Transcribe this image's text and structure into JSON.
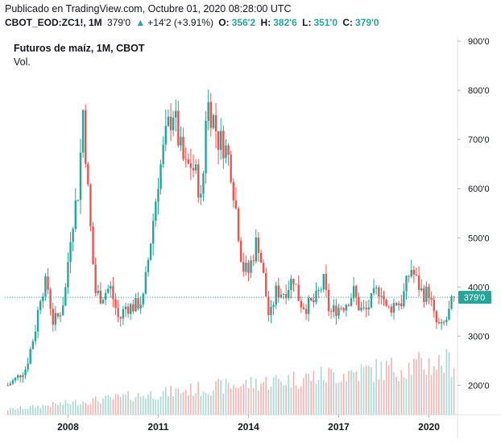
{
  "header": {
    "published": "Publicado en TradingView.com, Octubre 01, 2020 08:28:00 UTC",
    "symbol": "CBOT_EOD:ZC1!, 1M",
    "last": "379'0",
    "change_icon": "triangle-up-icon",
    "change": "+14'2 (+3.91%)",
    "open_label": "O:",
    "open": "356'2",
    "high_label": "H:",
    "high": "382'6",
    "low_label": "L:",
    "low": "351'0",
    "close_label": "C:",
    "close": "379'0"
  },
  "legend": {
    "title": "Futuros de maíz, 1M, CBOT",
    "volume": "Vol."
  },
  "colors": {
    "up": "#26a69a",
    "down": "#ef5350",
    "vol_up": "#a8d9d4",
    "vol_down": "#f4b3b1",
    "last_price_line": "#26a69a",
    "axis": "#787b86"
  },
  "chart_data": {
    "type": "candlestick",
    "interval": "1M",
    "ylim": [
      140,
      910
    ],
    "y_ticks": [
      "200'0",
      "300'0",
      "400'0",
      "500'0",
      "600'0",
      "700'0",
      "800'0",
      "900'0"
    ],
    "y_tick_values": [
      200,
      300,
      400,
      500,
      600,
      700,
      800,
      900
    ],
    "x_ticks": [
      "2008",
      "2011",
      "2014",
      "2017",
      "2020"
    ],
    "x_tick_years": [
      2008,
      2011,
      2014,
      2017,
      2020
    ],
    "x_range_years": [
      2005.9,
      2020.95
    ],
    "last_price_label": "379'0",
    "last_price": 379,
    "series": [
      {
        "name": "Futuros de maíz",
        "points": [
          [
            2006.0,
            200
          ],
          [
            2006.3,
            215
          ],
          [
            2006.6,
            235
          ],
          [
            2006.9,
            310
          ],
          [
            2007.1,
            390
          ],
          [
            2007.3,
            410
          ],
          [
            2007.5,
            330
          ],
          [
            2007.7,
            340
          ],
          [
            2007.9,
            385
          ],
          [
            2008.1,
            520
          ],
          [
            2008.35,
            600
          ],
          [
            2008.5,
            760
          ],
          [
            2008.7,
            560
          ],
          [
            2008.9,
            390
          ],
          [
            2009.1,
            380
          ],
          [
            2009.4,
            400
          ],
          [
            2009.7,
            330
          ],
          [
            2009.9,
            360
          ],
          [
            2010.2,
            360
          ],
          [
            2010.5,
            375
          ],
          [
            2010.8,
            520
          ],
          [
            2011.0,
            620
          ],
          [
            2011.3,
            720
          ],
          [
            2011.5,
            760
          ],
          [
            2011.7,
            690
          ],
          [
            2011.9,
            640
          ],
          [
            2012.1,
            650
          ],
          [
            2012.3,
            620
          ],
          [
            2012.45,
            560
          ],
          [
            2012.6,
            780
          ],
          [
            2012.8,
            750
          ],
          [
            2013.0,
            700
          ],
          [
            2013.2,
            690
          ],
          [
            2013.4,
            650
          ],
          [
            2013.6,
            550
          ],
          [
            2013.8,
            440
          ],
          [
            2014.0,
            430
          ],
          [
            2014.3,
            500
          ],
          [
            2014.5,
            420
          ],
          [
            2014.7,
            330
          ],
          [
            2014.9,
            390
          ],
          [
            2015.2,
            390
          ],
          [
            2015.5,
            420
          ],
          [
            2015.7,
            370
          ],
          [
            2015.9,
            360
          ],
          [
            2016.2,
            370
          ],
          [
            2016.5,
            410
          ],
          [
            2016.7,
            345
          ],
          [
            2016.9,
            355
          ],
          [
            2017.2,
            365
          ],
          [
            2017.5,
            390
          ],
          [
            2017.7,
            355
          ],
          [
            2017.9,
            350
          ],
          [
            2018.2,
            385
          ],
          [
            2018.4,
            400
          ],
          [
            2018.6,
            350
          ],
          [
            2018.9,
            370
          ],
          [
            2019.1,
            370
          ],
          [
            2019.4,
            440
          ],
          [
            2019.6,
            410
          ],
          [
            2019.8,
            385
          ],
          [
            2020.0,
            390
          ],
          [
            2020.2,
            330
          ],
          [
            2020.4,
            315
          ],
          [
            2020.6,
            335
          ],
          [
            2020.75,
            365
          ],
          [
            2020.83,
            379
          ]
        ]
      }
    ]
  }
}
